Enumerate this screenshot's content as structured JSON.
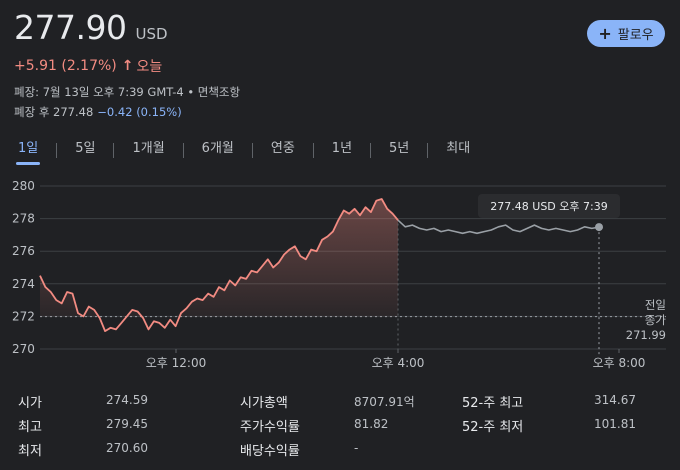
{
  "quote": {
    "price": "277.90",
    "currency": "USD",
    "change": "+5.91 (2.17%)",
    "change_arrow": "↑",
    "period": "오늘",
    "close_info": "폐장: 7월 13일 오후 7:39 GMT-4 • 면책조항",
    "after_hours_label": "폐장 후 277.48",
    "after_hours_change": "−0.42 (0.15%)"
  },
  "follow": {
    "icon": "plus-icon",
    "label": "팔로우"
  },
  "colors": {
    "up": "#f28b82",
    "accent": "#8ab4f8",
    "after_hours_line": "#9aa0a6"
  },
  "tabs": [
    {
      "label": "1일",
      "active": true
    },
    {
      "label": "5일"
    },
    {
      "label": "1개월"
    },
    {
      "label": "6개월"
    },
    {
      "label": "연중"
    },
    {
      "label": "1년"
    },
    {
      "label": "5년"
    },
    {
      "label": "최대"
    }
  ],
  "tooltip": "277.48 USD  오후 7:39",
  "prev_close": {
    "line1": "전일",
    "line2": "종가",
    "value": "271.99"
  },
  "chart_data": {
    "type": "line",
    "title": "",
    "ylim": [
      270,
      280
    ],
    "y_ticks": [
      "280",
      "278",
      "276",
      "274",
      "272",
      "270"
    ],
    "x_tick_labels": [
      "오후 12:00",
      "오후 4:00",
      "오후 8:00"
    ],
    "previous_close": 271.99,
    "regular_session": [
      274.5,
      273.8,
      273.5,
      273.0,
      272.8,
      273.5,
      273.4,
      272.2,
      272.0,
      272.6,
      272.4,
      271.9,
      271.1,
      271.3,
      271.2,
      271.6,
      272.0,
      272.4,
      272.3,
      271.9,
      271.2,
      271.7,
      271.6,
      271.3,
      271.8,
      271.4,
      272.2,
      272.5,
      272.9,
      273.1,
      273.0,
      273.4,
      273.2,
      273.8,
      273.6,
      274.2,
      273.9,
      274.4,
      274.3,
      274.8,
      274.7,
      275.1,
      275.5,
      275.0,
      275.3,
      275.8,
      276.1,
      276.3,
      275.7,
      275.5,
      276.1,
      276.0,
      276.7,
      276.9,
      277.2,
      277.9,
      278.5,
      278.3,
      278.6,
      278.2,
      278.7,
      278.4,
      279.1,
      279.2,
      278.6,
      278.3,
      277.9
    ],
    "after_hours": [
      277.9,
      277.5,
      277.6,
      277.4,
      277.3,
      277.4,
      277.2,
      277.3,
      277.2,
      277.1,
      277.2,
      277.1,
      277.2,
      277.3,
      277.5,
      277.6,
      277.3,
      277.2,
      277.4,
      277.6,
      277.4,
      277.3,
      277.4,
      277.3,
      277.2,
      277.3,
      277.5,
      277.4,
      277.48
    ]
  },
  "stats": [
    {
      "label": "시가",
      "value": "274.59"
    },
    {
      "label": "최고",
      "value": "279.45"
    },
    {
      "label": "최저",
      "value": "270.60"
    },
    {
      "label": "시가총액",
      "value": "8707.91억"
    },
    {
      "label": "주가수익률",
      "value": "81.82"
    },
    {
      "label": "배당수익률",
      "value": "-"
    },
    {
      "label": "52-주 최고",
      "value": "314.67"
    },
    {
      "label": "52-주 최저",
      "value": "101.81"
    }
  ]
}
